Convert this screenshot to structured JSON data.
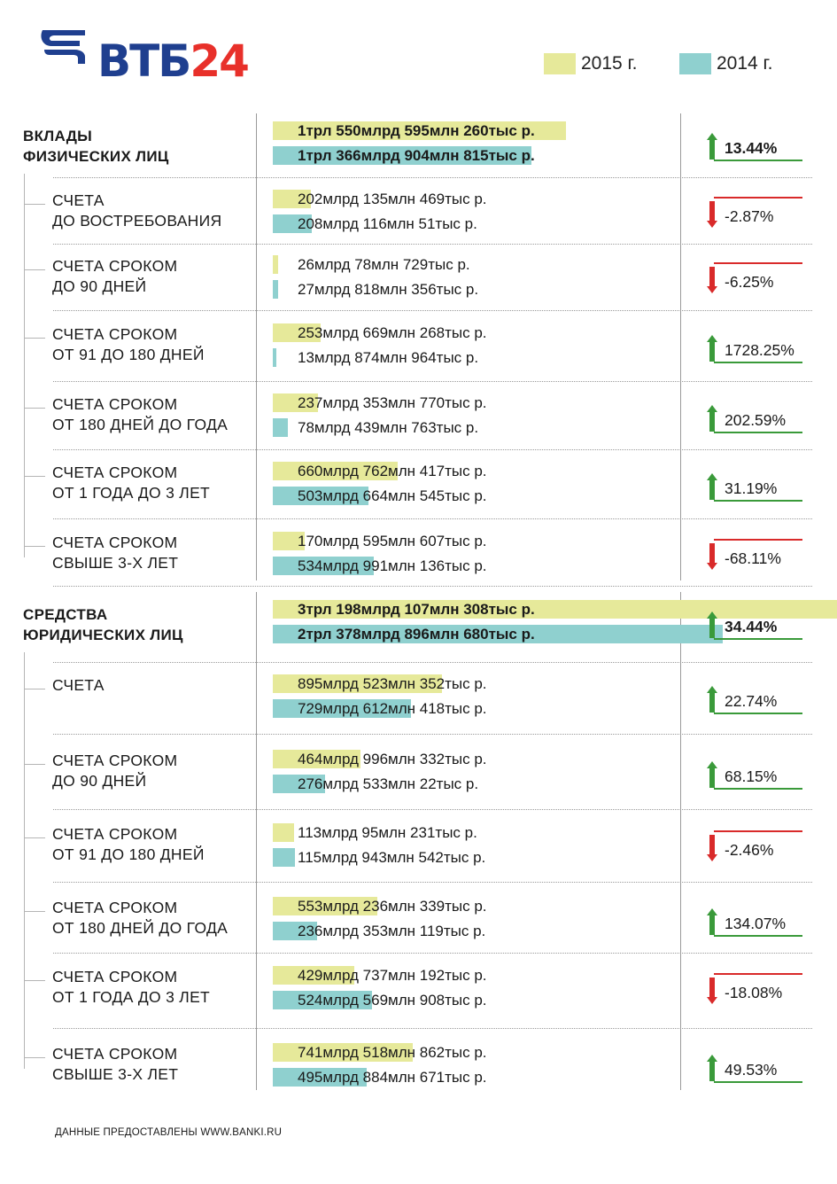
{
  "logo": {
    "text_blue": "ВТБ",
    "text_red": "24"
  },
  "legend": [
    {
      "label": "2015 г.",
      "color": "#e6e99a"
    },
    {
      "label": "2014 г.",
      "color": "#8fd0cf"
    }
  ],
  "colors": {
    "up": "#3a9a3a",
    "down": "#d92a2a",
    "bar_2015": "#e6e99a",
    "bar_2014": "#8fd0cf"
  },
  "groups": [
    {
      "title": [
        "ВКЛАДЫ",
        "ФИЗИЧЕСКИХ ЛИЦ"
      ],
      "total": {
        "v2015": "1трл 550млрд 595млн 260тыс р.",
        "v2014": "1трл 366млрд 904млн 815тыс р.",
        "change": "13.44%",
        "direction": "up"
      },
      "rows": [
        {
          "label": [
            "СЧЕТА",
            "ДО ВОСТРЕБОВАНИЯ"
          ],
          "v2015": "202млрд 135млн 469тыс р.",
          "v2014": "208млрд 116млн 51тыс р.",
          "change": "-2.87%",
          "direction": "down"
        },
        {
          "label": [
            "СЧЕТА СРОКОМ",
            "ДО 90 ДНЕЙ"
          ],
          "v2015": "26млрд 78млн 729тыс р.",
          "v2014": "27млрд 818млн 356тыс р.",
          "change": "-6.25%",
          "direction": "down"
        },
        {
          "label": [
            "СЧЕТА СРОКОМ",
            "ОТ 91 ДО 180  ДНЕЙ"
          ],
          "v2015": "253млрд 669млн 268тыс р.",
          "v2014": "13млрд 874млн 964тыс р.",
          "change": "1728.25%",
          "direction": "up"
        },
        {
          "label": [
            "СЧЕТА СРОКОМ",
            "ОТ 180 ДНЕЙ ДО ГОДА"
          ],
          "v2015": "237млрд 353млн 770тыс р.",
          "v2014": "78млрд 439млн 763тыс р.",
          "change": "202.59%",
          "direction": "up"
        },
        {
          "label": [
            "СЧЕТА СРОКОМ",
            "ОТ 1 ГОДА ДО 3 ЛЕТ"
          ],
          "v2015": "660млрд 762млн 417тыс р.",
          "v2014": "503млрд 664млн 545тыс р.",
          "change": "31.19%",
          "direction": "up"
        },
        {
          "label": [
            "СЧЕТА СРОКОМ",
            "СВЫШЕ 3-Х ЛЕТ"
          ],
          "v2015": "170млрд 595млн 607тыс р.",
          "v2014": "534млрд 991млн 136тыс р.",
          "change": "-68.11%",
          "direction": "down"
        }
      ]
    },
    {
      "title": [
        "СРЕДСТВА",
        "ЮРИДИЧЕСКИХ ЛИЦ"
      ],
      "total": {
        "v2015": "3трл 198млрд 107млн 308тыс р.",
        "v2014": "2трл 378млрд 896млн 680тыс р.",
        "change": "34.44%",
        "direction": "up"
      },
      "rows": [
        {
          "label": [
            "СЧЕТА"
          ],
          "v2015": "895млрд 523млн 352тыс р.",
          "v2014": "729млрд 612млн 418тыс р.",
          "change": "22.74%",
          "direction": "up"
        },
        {
          "label": [
            "СЧЕТА СРОКОМ",
            "ДО 90 ДНЕЙ"
          ],
          "v2015": "464млрд 996млн 332тыс р.",
          "v2014": "276млрд 533млн 22тыс р.",
          "change": "68.15%",
          "direction": "up"
        },
        {
          "label": [
            "СЧЕТА СРОКОМ",
            "ОТ 91 ДО 180  ДНЕЙ"
          ],
          "v2015": "113млрд 95млн 231тыс р.",
          "v2014": "115млрд 943млн 542тыс р.",
          "change": "-2.46%",
          "direction": "down"
        },
        {
          "label": [
            "СЧЕТА СРОКОМ",
            "ОТ 180 ДНЕЙ ДО ГОДА"
          ],
          "v2015": "553млрд 236млн 339тыс р.",
          "v2014": "236млрд 353млн 119тыс р.",
          "change": "134.07%",
          "direction": "up"
        },
        {
          "label": [
            "СЧЕТА СРОКОМ",
            "ОТ 1 ГОДА ДО 3 ЛЕТ"
          ],
          "v2015": "429млрд 737млн 192тыс р.",
          "v2014": "524млрд 569млн 908тыс р.",
          "change": "-18.08%",
          "direction": "down"
        },
        {
          "label": [
            "СЧЕТА СРОКОМ",
            "СВЫШЕ 3-Х ЛЕТ"
          ],
          "v2015": "741млрд 518млн 862тыс р.",
          "v2014": "495млрд 884млн 671тыс р.",
          "change": "49.53%",
          "direction": "up"
        }
      ]
    }
  ],
  "chart_data": {
    "type": "bar",
    "unit": "млрд р.",
    "categories": [
      "ВКЛАДЫ ФИЗИЧЕСКИХ ЛИЦ",
      "СЧЕТА ДО ВОСТРЕБОВАНИЯ",
      "СЧЕТА СРОКОМ ДО 90 ДНЕЙ",
      "СЧЕТА СРОКОМ ОТ 91 ДО 180 ДНЕЙ",
      "СЧЕТА СРОКОМ ОТ 180 ДНЕЙ ДО ГОДА",
      "СЧЕТА СРОКОМ ОТ 1 ГОДА ДО 3 ЛЕТ",
      "СЧЕТА СРОКОМ СВЫШЕ 3-Х ЛЕТ",
      "СРЕДСТВА ЮРИДИЧЕСКИХ ЛИЦ",
      "СЧЕТА",
      "СЧЕТА СРОКОМ ДО 90 ДНЕЙ",
      "СЧЕТА СРОКОМ ОТ 91 ДО 180 ДНЕЙ",
      "СЧЕТА СРОКОМ ОТ 180 ДНЕЙ ДО ГОДА",
      "СЧЕТА СРОКОМ ОТ 1 ГОДА ДО 3 ЛЕТ",
      "СЧЕТА СРОКОМ СВЫШЕ 3-Х ЛЕТ"
    ],
    "series": [
      {
        "name": "2015 г.",
        "values": [
          1550.595,
          202.135,
          26.079,
          253.669,
          237.354,
          660.762,
          170.596,
          3198.107,
          895.523,
          464.996,
          113.095,
          553.236,
          429.737,
          741.519
        ]
      },
      {
        "name": "2014 г.",
        "values": [
          1366.905,
          208.116,
          27.818,
          13.875,
          78.44,
          503.665,
          534.991,
          2378.897,
          729.612,
          276.533,
          115.944,
          236.353,
          524.57,
          495.885
        ]
      }
    ],
    "changes": [
      "13.44%",
      "-2.87%",
      "-6.25%",
      "1728.25%",
      "202.59%",
      "31.19%",
      "-68.11%",
      "34.44%",
      "22.74%",
      "68.15%",
      "-2.46%",
      "134.07%",
      "-18.08%",
      "49.53%"
    ]
  },
  "footer": "ДАННЫЕ ПРЕДОСТАВЛЕНЫ WWW.BANKI.RU"
}
